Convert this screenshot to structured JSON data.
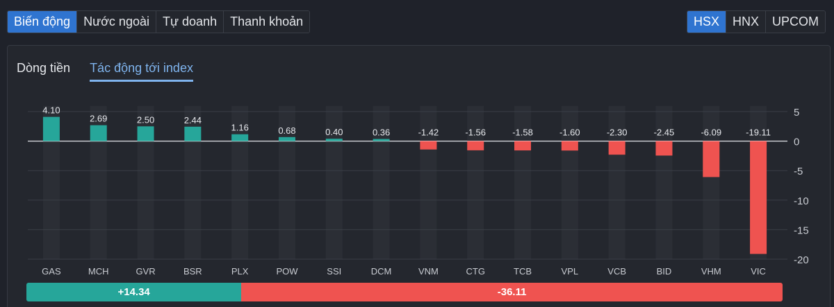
{
  "main_tabs": [
    {
      "label": "Biến động",
      "active": true
    },
    {
      "label": "Nước ngoài",
      "active": false
    },
    {
      "label": "Tự doanh",
      "active": false
    },
    {
      "label": "Thanh khoản",
      "active": false
    }
  ],
  "exchange_tabs": [
    {
      "label": "HSX",
      "active": true
    },
    {
      "label": "HNX",
      "active": false
    },
    {
      "label": "UPCOM",
      "active": false
    }
  ],
  "sub_tabs": [
    {
      "label": "Dòng tiền",
      "active": false
    },
    {
      "label": "Tác động tới index",
      "active": true
    }
  ],
  "colors": {
    "positive": "#26a69a",
    "negative": "#ef5350",
    "accent": "#2f74d0"
  },
  "chart_data": {
    "type": "bar",
    "categories": [
      "GAS",
      "MCH",
      "GVR",
      "BSR",
      "PLX",
      "POW",
      "SSI",
      "DCM",
      "VNM",
      "CTG",
      "TCB",
      "VPL",
      "VCB",
      "BID",
      "VHM",
      "VIC"
    ],
    "values": [
      4.1,
      2.69,
      2.5,
      2.44,
      1.16,
      0.68,
      0.4,
      0.36,
      -1.42,
      -1.56,
      -1.58,
      -1.6,
      -2.3,
      -2.45,
      -6.09,
      -19.11
    ],
    "value_labels": [
      "4.10",
      "2.69",
      "2.50",
      "2.44",
      "1.16",
      "0.68",
      "0.40",
      "0.36",
      "-1.42",
      "-1.56",
      "-1.58",
      "-1.60",
      "-2.30",
      "-2.45",
      "-6.09",
      "-19.11"
    ],
    "y_ticks": [
      5,
      0,
      -5,
      -10,
      -15,
      -20
    ],
    "ylim": [
      -20,
      5
    ],
    "axis_position": "right",
    "grid": true
  },
  "summary": {
    "positive_value": 14.34,
    "positive_label": "+14.34",
    "negative_value": 36.11,
    "negative_label": "-36.11"
  }
}
